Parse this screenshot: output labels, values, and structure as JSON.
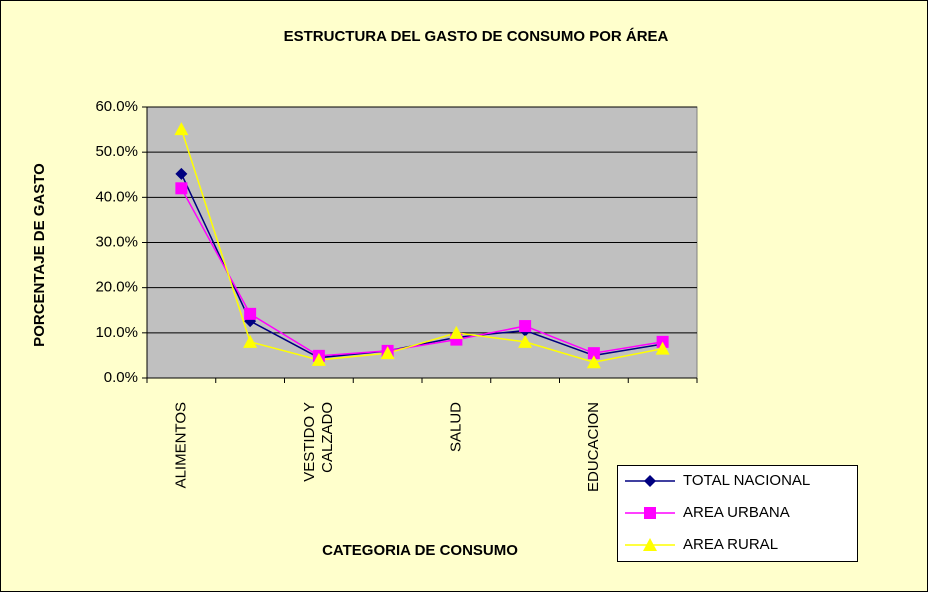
{
  "chart_data": {
    "type": "line",
    "title": "ESTRUCTURA DEL GASTO DE CONSUMO POR ÁREA",
    "x_label": "CATEGORIA DE CONSUMO",
    "y_label": "PORCENTAJE DE GASTO",
    "categories": [
      "ALIMENTOS",
      null,
      "VESTIDO Y CALZADO",
      null,
      "SALUD",
      null,
      "EDUCACION",
      null
    ],
    "series": [
      {
        "name": "TOTAL NACIONAL",
        "color": "#000080",
        "marker": "diamond",
        "values": [
          45.2,
          12.6,
          4.5,
          6.0,
          9.0,
          10.5,
          5.0,
          7.5
        ]
      },
      {
        "name": "AREA URBANA",
        "color": "#FF00FF",
        "marker": "square",
        "values": [
          42.0,
          14.2,
          4.9,
          6.0,
          8.5,
          11.5,
          5.5,
          8.0
        ]
      },
      {
        "name": "AREA RURAL",
        "color": "#FFFF00",
        "marker": "triangle",
        "values": [
          55.1,
          8.0,
          4.0,
          5.5,
          10.0,
          8.0,
          3.5,
          6.5
        ]
      }
    ],
    "ylim": [
      0,
      60
    ],
    "yticks": [
      {
        "value": 0,
        "label": "0.0%"
      },
      {
        "value": 10,
        "label": "10.0%"
      },
      {
        "value": 20,
        "label": "20.0%"
      },
      {
        "value": 30,
        "label": "30.0%"
      },
      {
        "value": 40,
        "label": "40.0%"
      },
      {
        "value": 50,
        "label": "50.0%"
      },
      {
        "value": 60,
        "label": "60.0%"
      }
    ],
    "grid": true,
    "legend": "bottom-right"
  }
}
